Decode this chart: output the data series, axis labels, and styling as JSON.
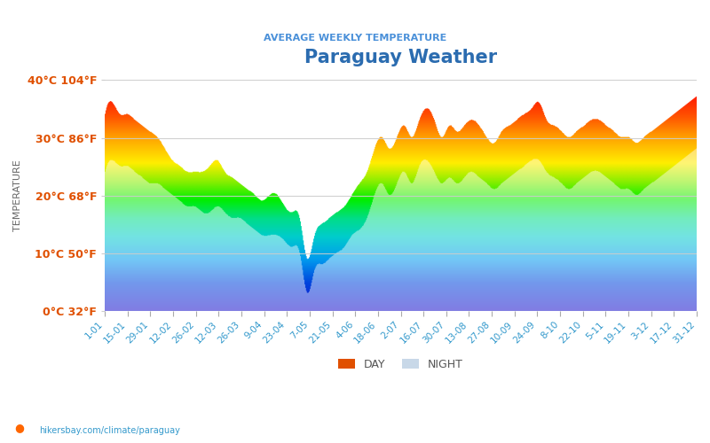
{
  "title": "Paraguay Weather",
  "subtitle": "AVERAGE WEEKLY TEMPERATURE",
  "ylabel": "TEMPERATURE",
  "xlabel_ticks": [
    "1-01",
    "15-01",
    "29-01",
    "12-02",
    "26-02",
    "12-03",
    "26-03",
    "9-04",
    "23-04",
    "7-05",
    "21-05",
    "4-06",
    "18-06",
    "2-07",
    "16-07",
    "30-07",
    "13-08",
    "27-08",
    "10-09",
    "24-09",
    "8-10",
    "22-10",
    "5-11",
    "19-11",
    "3-12",
    "17-12",
    "31-12"
  ],
  "ytick_labels": [
    "0°C 32°F",
    "10°C 50°F",
    "20°C 68°F",
    "30°C 86°F",
    "40°C 104°F"
  ],
  "ytick_values": [
    0,
    10,
    20,
    30,
    40
  ],
  "ymin": 0,
  "ymax": 40,
  "title_color": "#2b6cb0",
  "subtitle_color": "#4a90d9",
  "ytick_color": "#e05000",
  "day_temp": [
    34,
    36,
    34,
    34,
    33,
    32,
    31,
    30,
    28,
    26,
    25,
    24,
    24,
    24,
    25,
    26,
    24,
    23,
    22,
    21,
    20,
    19,
    20,
    20,
    18,
    17,
    16,
    9,
    13,
    15,
    16,
    17,
    18,
    20,
    22,
    24,
    28,
    30,
    28,
    30,
    32,
    30,
    33,
    35,
    33,
    30,
    32,
    31,
    32,
    33,
    32,
    30,
    29,
    31,
    32,
    33,
    34,
    35,
    36,
    33,
    32,
    31,
    30,
    31,
    32,
    33,
    33,
    32,
    31,
    30,
    30,
    29,
    30,
    31,
    32,
    33,
    34,
    35,
    36,
    37
  ],
  "night_temp": [
    24,
    26,
    25,
    25,
    24,
    23,
    22,
    22,
    21,
    20,
    19,
    18,
    18,
    17,
    17,
    18,
    17,
    16,
    16,
    15,
    14,
    13,
    13,
    13,
    12,
    11,
    10,
    3,
    7,
    8,
    9,
    10,
    11,
    13,
    14,
    16,
    20,
    22,
    20,
    22,
    24,
    22,
    25,
    26,
    24,
    22,
    23,
    22,
    23,
    24,
    23,
    22,
    21,
    22,
    23,
    24,
    25,
    26,
    26,
    24,
    23,
    22,
    21,
    22,
    23,
    24,
    24,
    23,
    22,
    21,
    21,
    20,
    21,
    22,
    23,
    24,
    25,
    26,
    27,
    28
  ],
  "n_points": 80,
  "watermark": "hikersbay.com/climate/paraguay",
  "legend_day_color": "#e05000",
  "legend_night_color": "#c8d8e8",
  "rainbow_colors": [
    [
      0.0,
      "#1a12cc"
    ],
    [
      0.12,
      "#0044dd"
    ],
    [
      0.22,
      "#0099ee"
    ],
    [
      0.32,
      "#00cccc"
    ],
    [
      0.4,
      "#00dd88"
    ],
    [
      0.48,
      "#00ee00"
    ],
    [
      0.56,
      "#88ee00"
    ],
    [
      0.64,
      "#ffee00"
    ],
    [
      0.74,
      "#ffaa00"
    ],
    [
      0.84,
      "#ff5500"
    ],
    [
      0.92,
      "#ff2200"
    ],
    [
      1.0,
      "#ff0000"
    ]
  ]
}
